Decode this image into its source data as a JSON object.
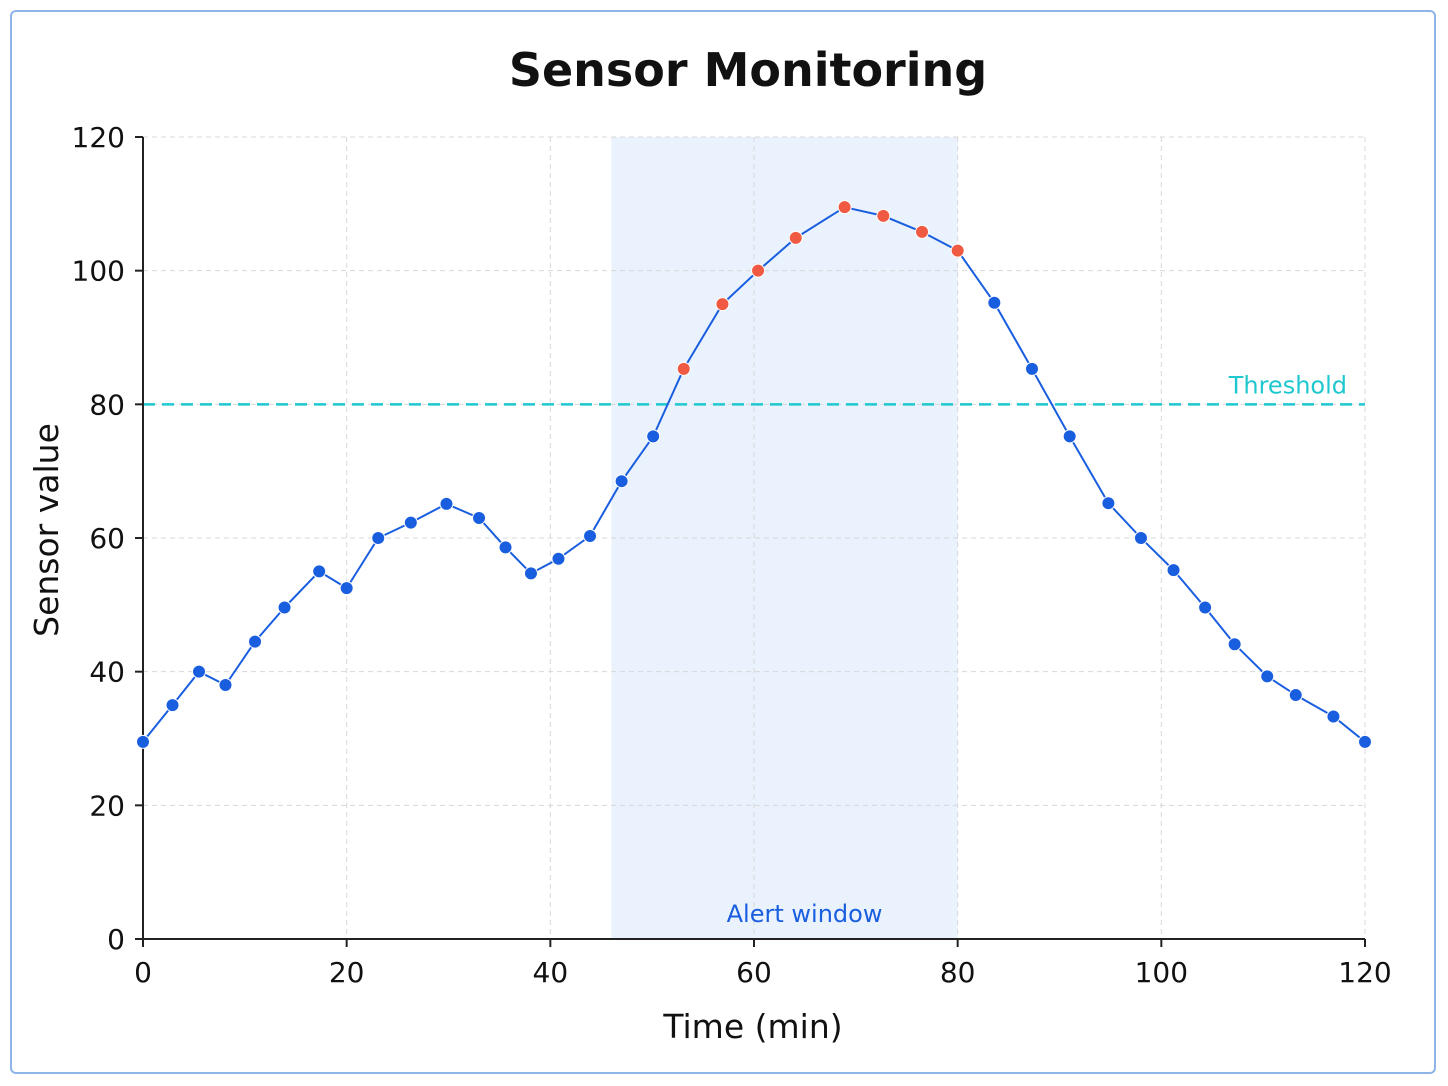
{
  "colors": {
    "line": "#1a5ee0",
    "point_normal": "#1a5ee0",
    "point_alert": "#f05a43",
    "threshold": "#1fc7cf",
    "alert_window_fill": "#eaf2fd",
    "alert_window_text": "#1a5ee0",
    "grid": "#d8d8d8",
    "axis": "#222222"
  },
  "chart_data": {
    "type": "line",
    "title": "Sensor Monitoring",
    "xlabel": "Time (min)",
    "ylabel": "Sensor value",
    "xlim": [
      0,
      120
    ],
    "ylim": [
      0,
      120
    ],
    "xticks": [
      "0",
      "20",
      "40",
      "60",
      "80",
      "100",
      "120"
    ],
    "yticks": [
      "0",
      "20",
      "40",
      "60",
      "80",
      "100",
      "120"
    ],
    "grid": true,
    "series": [
      {
        "x": [
          0,
          2.9,
          5.5,
          8.1,
          11.0,
          13.9,
          17.3,
          20.0,
          23.1,
          26.3,
          29.8,
          33.0,
          35.6,
          38.1,
          40.8,
          43.9,
          47.0,
          50.1,
          53.1,
          56.9,
          60.4,
          64.1,
          68.9,
          72.7,
          76.5,
          80.0,
          83.6,
          87.3,
          91.0,
          94.8,
          98.0,
          101.2,
          104.3,
          107.2,
          110.4,
          113.2,
          116.9,
          120.0
        ],
        "values": [
          29.5,
          35,
          40,
          38,
          44.5,
          49.6,
          55,
          52.5,
          60,
          62.3,
          65.1,
          63,
          58.6,
          54.7,
          56.9,
          60.3,
          68.5,
          75.2,
          85.3,
          95,
          100,
          104.9,
          109.5,
          108.2,
          105.8,
          103,
          95.2,
          85.3,
          75.2,
          65.2,
          60,
          55.2,
          49.6,
          44.1,
          39.3,
          36.5,
          33.3,
          29.5
        ],
        "alert": [
          false,
          false,
          false,
          false,
          false,
          false,
          false,
          false,
          false,
          false,
          false,
          false,
          false,
          false,
          false,
          false,
          false,
          false,
          true,
          true,
          true,
          true,
          true,
          true,
          true,
          true,
          false,
          false,
          false,
          false,
          false,
          false,
          false,
          false,
          false,
          false,
          false,
          false
        ]
      }
    ],
    "threshold": {
      "value": 80,
      "label": "Threshold"
    },
    "alert_window": {
      "start": 46,
      "end": 80,
      "label": "Alert window"
    }
  }
}
